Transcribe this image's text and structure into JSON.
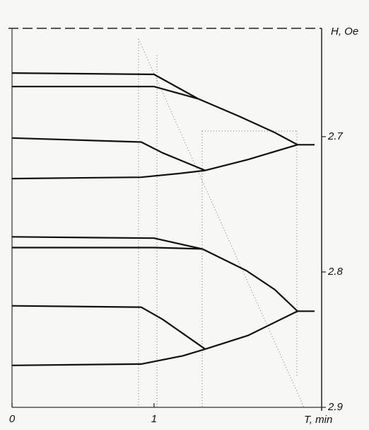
{
  "chart_data": {
    "type": "line",
    "x_label": "T, min",
    "y_label": "H, Oe",
    "xlim": [
      0,
      2.16
    ],
    "ylim": [
      2.62,
      2.9
    ],
    "y_inverted": true,
    "xticks": [
      0,
      1
    ],
    "yticks": [
      2.7,
      2.8,
      2.9
    ],
    "color": "#111111",
    "series": [
      {
        "x": [
          0,
          1.0,
          1.31
        ],
        "values": [
          2.653,
          2.654,
          2.672
        ]
      },
      {
        "x": [
          0,
          1.0,
          1.31
        ],
        "values": [
          2.663,
          2.663,
          2.672
        ]
      },
      {
        "x": [
          1.31,
          1.6,
          1.85,
          2.01
        ],
        "values": [
          2.672,
          2.685,
          2.697,
          2.706
        ]
      },
      {
        "x": [
          0,
          0.91,
          1.06,
          1.36
        ],
        "values": [
          2.701,
          2.704,
          2.712,
          2.725
        ]
      },
      {
        "x": [
          0,
          0.91,
          1.2,
          1.36
        ],
        "values": [
          2.731,
          2.73,
          2.727,
          2.725
        ]
      },
      {
        "x": [
          1.36,
          1.66,
          2.01
        ],
        "values": [
          2.725,
          2.717,
          2.706
        ]
      },
      {
        "x": [
          2.01,
          2.13
        ],
        "values": [
          2.706,
          2.706
        ]
      },
      {
        "x": [
          0,
          1.0,
          1.34
        ],
        "values": [
          2.774,
          2.775,
          2.783
        ]
      },
      {
        "x": [
          0,
          1.0,
          1.34
        ],
        "values": [
          2.782,
          2.782,
          2.783
        ]
      },
      {
        "x": [
          1.34,
          1.65,
          1.85,
          2.01
        ],
        "values": [
          2.783,
          2.799,
          2.813,
          2.829
        ]
      },
      {
        "x": [
          0,
          0.91,
          1.06,
          1.36
        ],
        "values": [
          2.825,
          2.826,
          2.835,
          2.857
        ]
      },
      {
        "x": [
          0,
          0.91,
          1.2,
          1.36
        ],
        "values": [
          2.869,
          2.868,
          2.862,
          2.857
        ]
      },
      {
        "x": [
          1.36,
          1.66,
          2.01
        ],
        "values": [
          2.857,
          2.847,
          2.829
        ]
      },
      {
        "x": [
          2.01,
          2.13
        ],
        "values": [
          2.829,
          2.829
        ]
      }
    ]
  }
}
